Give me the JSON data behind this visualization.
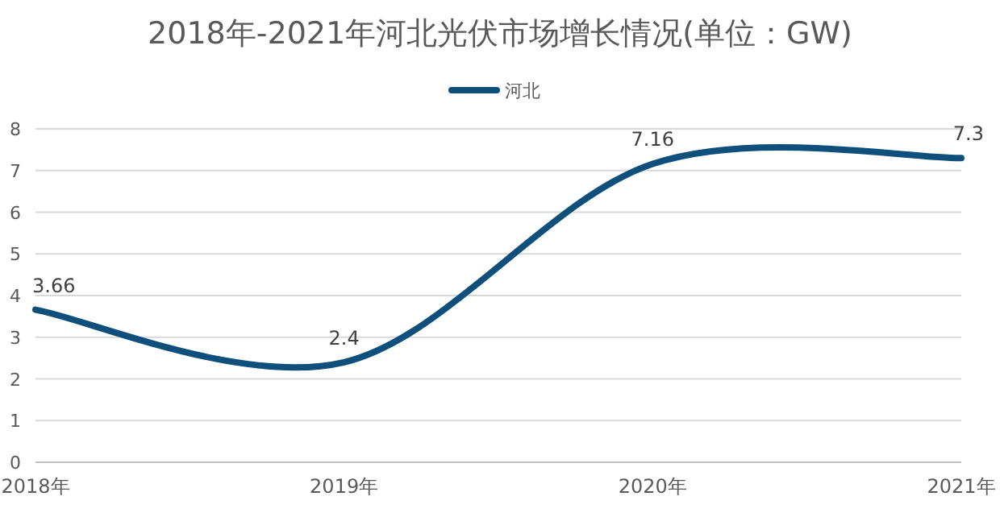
{
  "chart_data": {
    "type": "line",
    "title": "2018年-2021年河北光伏市场增长情况(单位：GW)",
    "categories": [
      "2018年",
      "2019年",
      "2020年",
      "2021年"
    ],
    "series": [
      {
        "name": "河北",
        "color": "#0e4f7c",
        "values": [
          3.66,
          2.4,
          7.16,
          7.3
        ]
      }
    ],
    "ylim": [
      0,
      8
    ],
    "yticks": [
      0,
      1,
      2,
      3,
      4,
      5,
      6,
      7,
      8
    ],
    "grid": "y",
    "legend": "top",
    "data_labels": true
  }
}
